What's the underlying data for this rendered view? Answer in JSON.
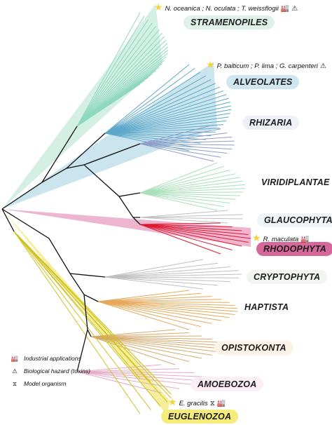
{
  "clades": [
    {
      "key": "stramenopiles",
      "label": "STRAMENOPILES",
      "color": "#dff2ea"
    },
    {
      "key": "alveolates",
      "label": "ALVEOLATES",
      "color": "#cfe7f1"
    },
    {
      "key": "rhizaria",
      "label": "RHIZARIA",
      "color": "#eef1f7"
    },
    {
      "key": "viridiplantae",
      "label": "VIRIDIPLANTAE",
      "color": "#ffffff"
    },
    {
      "key": "glaucophyta",
      "label": "GLAUCOPHYTA",
      "color": "#eef4f7"
    },
    {
      "key": "rhodophyta",
      "label": "RHODOPHYTA",
      "color": "#d6679a"
    },
    {
      "key": "cryptophyta",
      "label": "CRYPTOPHYTA",
      "color": "#f2f5f2"
    },
    {
      "key": "haptista",
      "label": "HAPTISTA",
      "color": "#ffffff"
    },
    {
      "key": "opistokonta",
      "label": "OPISTOKONTA",
      "color": "#fbf3e6"
    },
    {
      "key": "amoebozoa",
      "label": "AMOEBOZOA",
      "color": "#fbeef4"
    },
    {
      "key": "euglenozoa",
      "label": "EUGLENOZOA",
      "color": "#f5ec7c"
    }
  ],
  "annotations": [
    {
      "key": "stramenopiles",
      "text": "N. oceanica ; N. oculata ; T. weissflogii",
      "icons": [
        "industry-icon",
        "hazard-icon"
      ]
    },
    {
      "key": "alveolates",
      "text": "P. balticum ; P. lima ; G. carpenteri",
      "icons": [
        "hazard-icon"
      ]
    },
    {
      "key": "rhodophyta",
      "text": "R. maculata",
      "icons": [
        "industry-icon"
      ]
    },
    {
      "key": "euglenozoa",
      "text": "E. gracilis",
      "icons": [
        "dna-icon",
        "industry-icon"
      ]
    }
  ],
  "legend": [
    {
      "icon": "industry-icon",
      "label": "Industrial applications"
    },
    {
      "icon": "hazard-icon",
      "label": "Biological hazard (toxins)"
    },
    {
      "icon": "dna-icon",
      "label": "Model organism"
    }
  ],
  "colors": {
    "stramenopiles_fan": "#c5eadb",
    "stramenopiles_branch": "#8fd8c0",
    "alveolates_fan": "#b9dcea",
    "alveolates_branch": "#5ea8c9",
    "rhizaria_branch": "#8f9fc9",
    "viridiplantae_branch": "#a9dfba",
    "rhodophyta_fan": "#e79cc0",
    "rhodophyta_branch": "#e0182e",
    "cryptophyta_branch": "#bfbfbf",
    "haptista_branch": "#e5a85a",
    "opistokonta_branch": "#d7a86e",
    "amoebozoa_branch": "#e5a9c5",
    "euglenozoa_fan": "#f2ea7a",
    "euglenozoa_branch": "#cfc220",
    "backbone": "#111111",
    "star": "#f2d33a"
  }
}
